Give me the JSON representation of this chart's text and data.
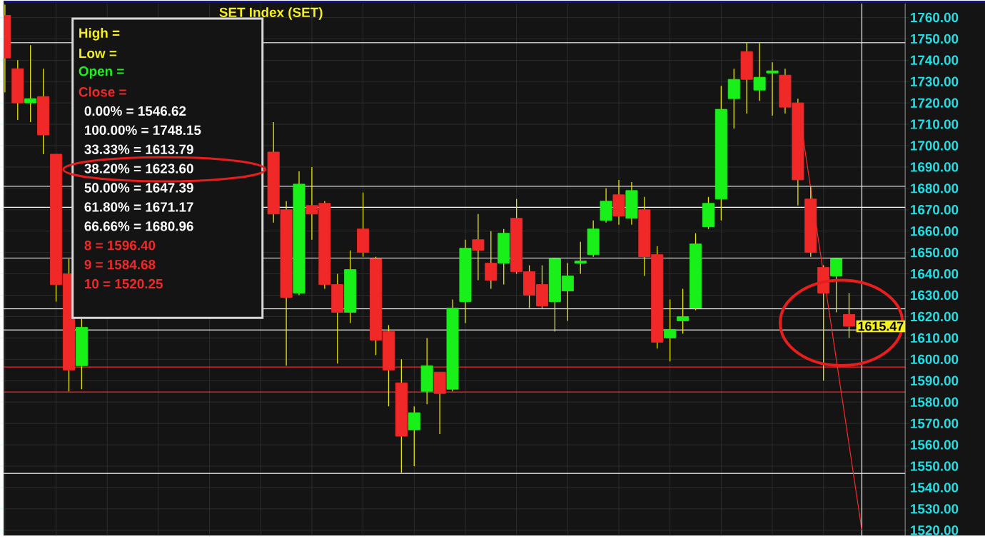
{
  "chart_data": {
    "type": "candlestick",
    "title": "SET Index (SET)",
    "categories": [
      null,
      null,
      null,
      null,
      null,
      null,
      null,
      null,
      null,
      null,
      null,
      null,
      null,
      null,
      null,
      null,
      null,
      null,
      null,
      null,
      null,
      null,
      null,
      null,
      null,
      null,
      null,
      null,
      null,
      null,
      null,
      null,
      null,
      null,
      null,
      null,
      null,
      null,
      null,
      null,
      null,
      null,
      null,
      null,
      null,
      null,
      null,
      null,
      null,
      null,
      null,
      null,
      null,
      null,
      null,
      null,
      null,
      null,
      null,
      null,
      null,
      null,
      null,
      null,
      null,
      null,
      null,
      null
    ],
    "ohlc": [
      [
        1761,
        1766,
        1725,
        1741
      ],
      [
        1736,
        1740,
        1712,
        1720
      ],
      [
        1720,
        1747,
        1711,
        1722
      ],
      [
        1723,
        1736,
        1696,
        1705
      ],
      [
        1696,
        1696,
        1627,
        1635
      ],
      [
        1640,
        1647,
        1585,
        1595
      ],
      [
        1597,
        1619,
        1586,
        1615
      ],
      null,
      null,
      null,
      null,
      null,
      null,
      null,
      null,
      null,
      null,
      null,
      null,
      null,
      null,
      [
        1697,
        1711,
        1664,
        1668
      ],
      [
        1670,
        1674,
        1597,
        1629
      ],
      [
        1631,
        1688,
        1630,
        1682
      ],
      [
        1672,
        1690,
        1656,
        1668
      ],
      [
        1673,
        1674,
        1633,
        1635
      ],
      [
        1635,
        1640,
        1598,
        1622
      ],
      [
        1622,
        1651,
        1617,
        1642
      ],
      [
        1661,
        1678,
        1648,
        1650
      ],
      [
        1647,
        1648,
        1602,
        1609
      ],
      [
        1613,
        1616,
        1578,
        1595
      ],
      [
        1589,
        1600,
        1547,
        1564
      ],
      [
        1567,
        1578,
        1550,
        1575
      ],
      [
        1585,
        1610,
        1579,
        1597
      ],
      [
        1594,
        1594,
        1565,
        1584
      ],
      [
        1586,
        1628,
        1585,
        1624
      ],
      [
        1627,
        1656,
        1617,
        1652
      ],
      [
        1656,
        1668,
        1637,
        1651
      ],
      [
        1645,
        1660,
        1633,
        1637
      ],
      [
        1645,
        1661,
        1635,
        1659
      ],
      [
        1666,
        1675,
        1640,
        1641
      ],
      [
        1641,
        1644,
        1624,
        1630
      ],
      [
        1635,
        1644,
        1624,
        1625
      ],
      [
        1627,
        1647,
        1613,
        1647
      ],
      [
        1632,
        1645,
        1618,
        1639
      ],
      [
        1645,
        1655,
        1640,
        1646
      ],
      [
        1649,
        1665,
        1648,
        1661
      ],
      [
        1665,
        1680,
        1664,
        1674
      ],
      [
        1677,
        1684,
        1663,
        1667
      ],
      [
        1666,
        1683,
        1663,
        1679
      ],
      [
        1670,
        1676,
        1639,
        1648
      ],
      [
        1649,
        1653,
        1605,
        1608
      ],
      [
        1610,
        1628,
        1599,
        1614
      ],
      [
        1618,
        1633,
        1612,
        1620
      ],
      [
        1624,
        1659,
        1623,
        1654
      ],
      [
        1662,
        1676,
        1661,
        1673
      ],
      [
        1675,
        1728,
        1665,
        1717
      ],
      [
        1722,
        1736,
        1708,
        1731
      ],
      [
        1744,
        1748,
        1715,
        1731
      ],
      [
        1726,
        1748,
        1721,
        1732
      ],
      [
        1734,
        1739,
        1714,
        1735
      ],
      [
        1733,
        1736,
        1715,
        1718
      ],
      [
        1720,
        1722,
        1672,
        1684
      ],
      [
        1675,
        1681,
        1648,
        1650
      ],
      [
        1643,
        1644,
        1590,
        1631
      ],
      [
        1639,
        1647,
        1622,
        1647
      ],
      [
        1621,
        1631,
        1610,
        1615.47
      ],
      null
    ],
    "colors": [
      "#f02828",
      "#f02828",
      "#19f019",
      "#f02828",
      "#f02828",
      "#f02828",
      "#19f019",
      null,
      null,
      null,
      null,
      null,
      null,
      null,
      null,
      null,
      null,
      null,
      null,
      null,
      null,
      "#f02828",
      "#f02828",
      "#19f019",
      "#f02828",
      "#f02828",
      "#f02828",
      "#19f019",
      "#f02828",
      "#f02828",
      "#f02828",
      "#f02828",
      "#19f019",
      "#19f019",
      "#f02828",
      "#19f019",
      "#19f019",
      "#f02828",
      "#f02828",
      "#19f019",
      "#f02828",
      "#f02828",
      "#f02828",
      "#19f019",
      "#19f019",
      "#19f019",
      "#19f019",
      "#19f019",
      "#f02828",
      "#19f019",
      "#f02828",
      "#f02828",
      "#19f019",
      "#19f019",
      "#19f019",
      "#19f019",
      "#19f019",
      "#19f019",
      "#f02828",
      "#19f019",
      "#19f019",
      "#f02828",
      "#f02828",
      "#f02828",
      "#f02828",
      "#19f019",
      "#f02828",
      null
    ],
    "ylim": [
      1517.5,
      1766.5
    ],
    "yticks": [
      {
        "value": 1520,
        "label": "1520.00"
      },
      {
        "value": 1530,
        "label": "1530.00"
      },
      {
        "value": 1540,
        "label": "1540.00"
      },
      {
        "value": 1550,
        "label": "1550.00"
      },
      {
        "value": 1560,
        "label": "1560.00"
      },
      {
        "value": 1570,
        "label": "1570.00"
      },
      {
        "value": 1580,
        "label": "1580.00"
      },
      {
        "value": 1590,
        "label": "1590.00"
      },
      {
        "value": 1600,
        "label": "1600.00"
      },
      {
        "value": 1610,
        "label": "1610.00"
      },
      {
        "value": 1620,
        "label": "1620.00"
      },
      {
        "value": 1630,
        "label": "1630.00"
      },
      {
        "value": 1640,
        "label": "1640.00"
      },
      {
        "value": 1650,
        "label": "1650.00"
      },
      {
        "value": 1660,
        "label": "1660.00"
      },
      {
        "value": 1670,
        "label": "1670.00"
      },
      {
        "value": 1680,
        "label": "1680.00"
      },
      {
        "value": 1690,
        "label": "1690.00"
      },
      {
        "value": 1700,
        "label": "1700.00"
      },
      {
        "value": 1710,
        "label": "1710.00"
      },
      {
        "value": 1720,
        "label": "1720.00"
      },
      {
        "value": 1730,
        "label": "1730.00"
      },
      {
        "value": 1740,
        "label": "1740.00"
      },
      {
        "value": 1750,
        "label": "1750.00"
      },
      {
        "value": 1760,
        "label": "1760.00"
      }
    ],
    "grid": true,
    "tick_labels": "y",
    "series": [
      {
        "type": "line",
        "values": [
          null,
          null,
          null,
          null,
          null,
          null,
          null,
          null,
          null,
          null,
          null,
          null,
          null,
          null,
          null,
          null,
          null,
          null,
          null,
          null,
          null,
          null,
          null,
          null,
          null,
          null,
          null,
          null,
          null,
          null,
          null,
          null,
          null,
          null,
          null,
          null,
          null,
          null,
          null,
          null,
          null,
          null,
          null,
          null,
          null,
          null,
          null,
          null,
          null,
          null,
          null,
          null,
          null,
          null,
          null,
          null,
          null,
          null,
          null,
          null,
          null,
          null,
          1720,
          null,
          null,
          null,
          null,
          1520
        ],
        "color": "#ff2a2a"
      }
    ],
    "ref_lines": [
      {
        "axis": "y",
        "value": 1546.62,
        "color": "#ffffff"
      },
      {
        "axis": "y",
        "value": 1748.15,
        "color": "#ffffff"
      },
      {
        "axis": "y",
        "value": 1613.79,
        "color": "#ffffff"
      },
      {
        "axis": "y",
        "value": 1623.6,
        "color": "#ffffff"
      },
      {
        "axis": "y",
        "value": 1647.39,
        "color": "#ffffff"
      },
      {
        "axis": "y",
        "value": 1671.17,
        "color": "#ffffff"
      },
      {
        "axis": "y",
        "value": 1680.96,
        "color": "#ffffff"
      },
      {
        "axis": "y",
        "value": 1596.4,
        "color": "#f02828"
      },
      {
        "axis": "y",
        "value": 1584.68,
        "color": "#f02828"
      }
    ],
    "annotations": [
      "High =",
      "Low =",
      "Open =",
      "Close =",
      "0.00% = 1546.62",
      "100.00% = 1748.15",
      "33.33% = 1613.79",
      "38.20% = 1623.60",
      "50.00% = 1647.39",
      "61.80% = 1671.17",
      "66.66% = 1680.96",
      "8 = 1596.40",
      "9 = 1584.68",
      "10 = 1520.25",
      "1615.47"
    ]
  }
}
